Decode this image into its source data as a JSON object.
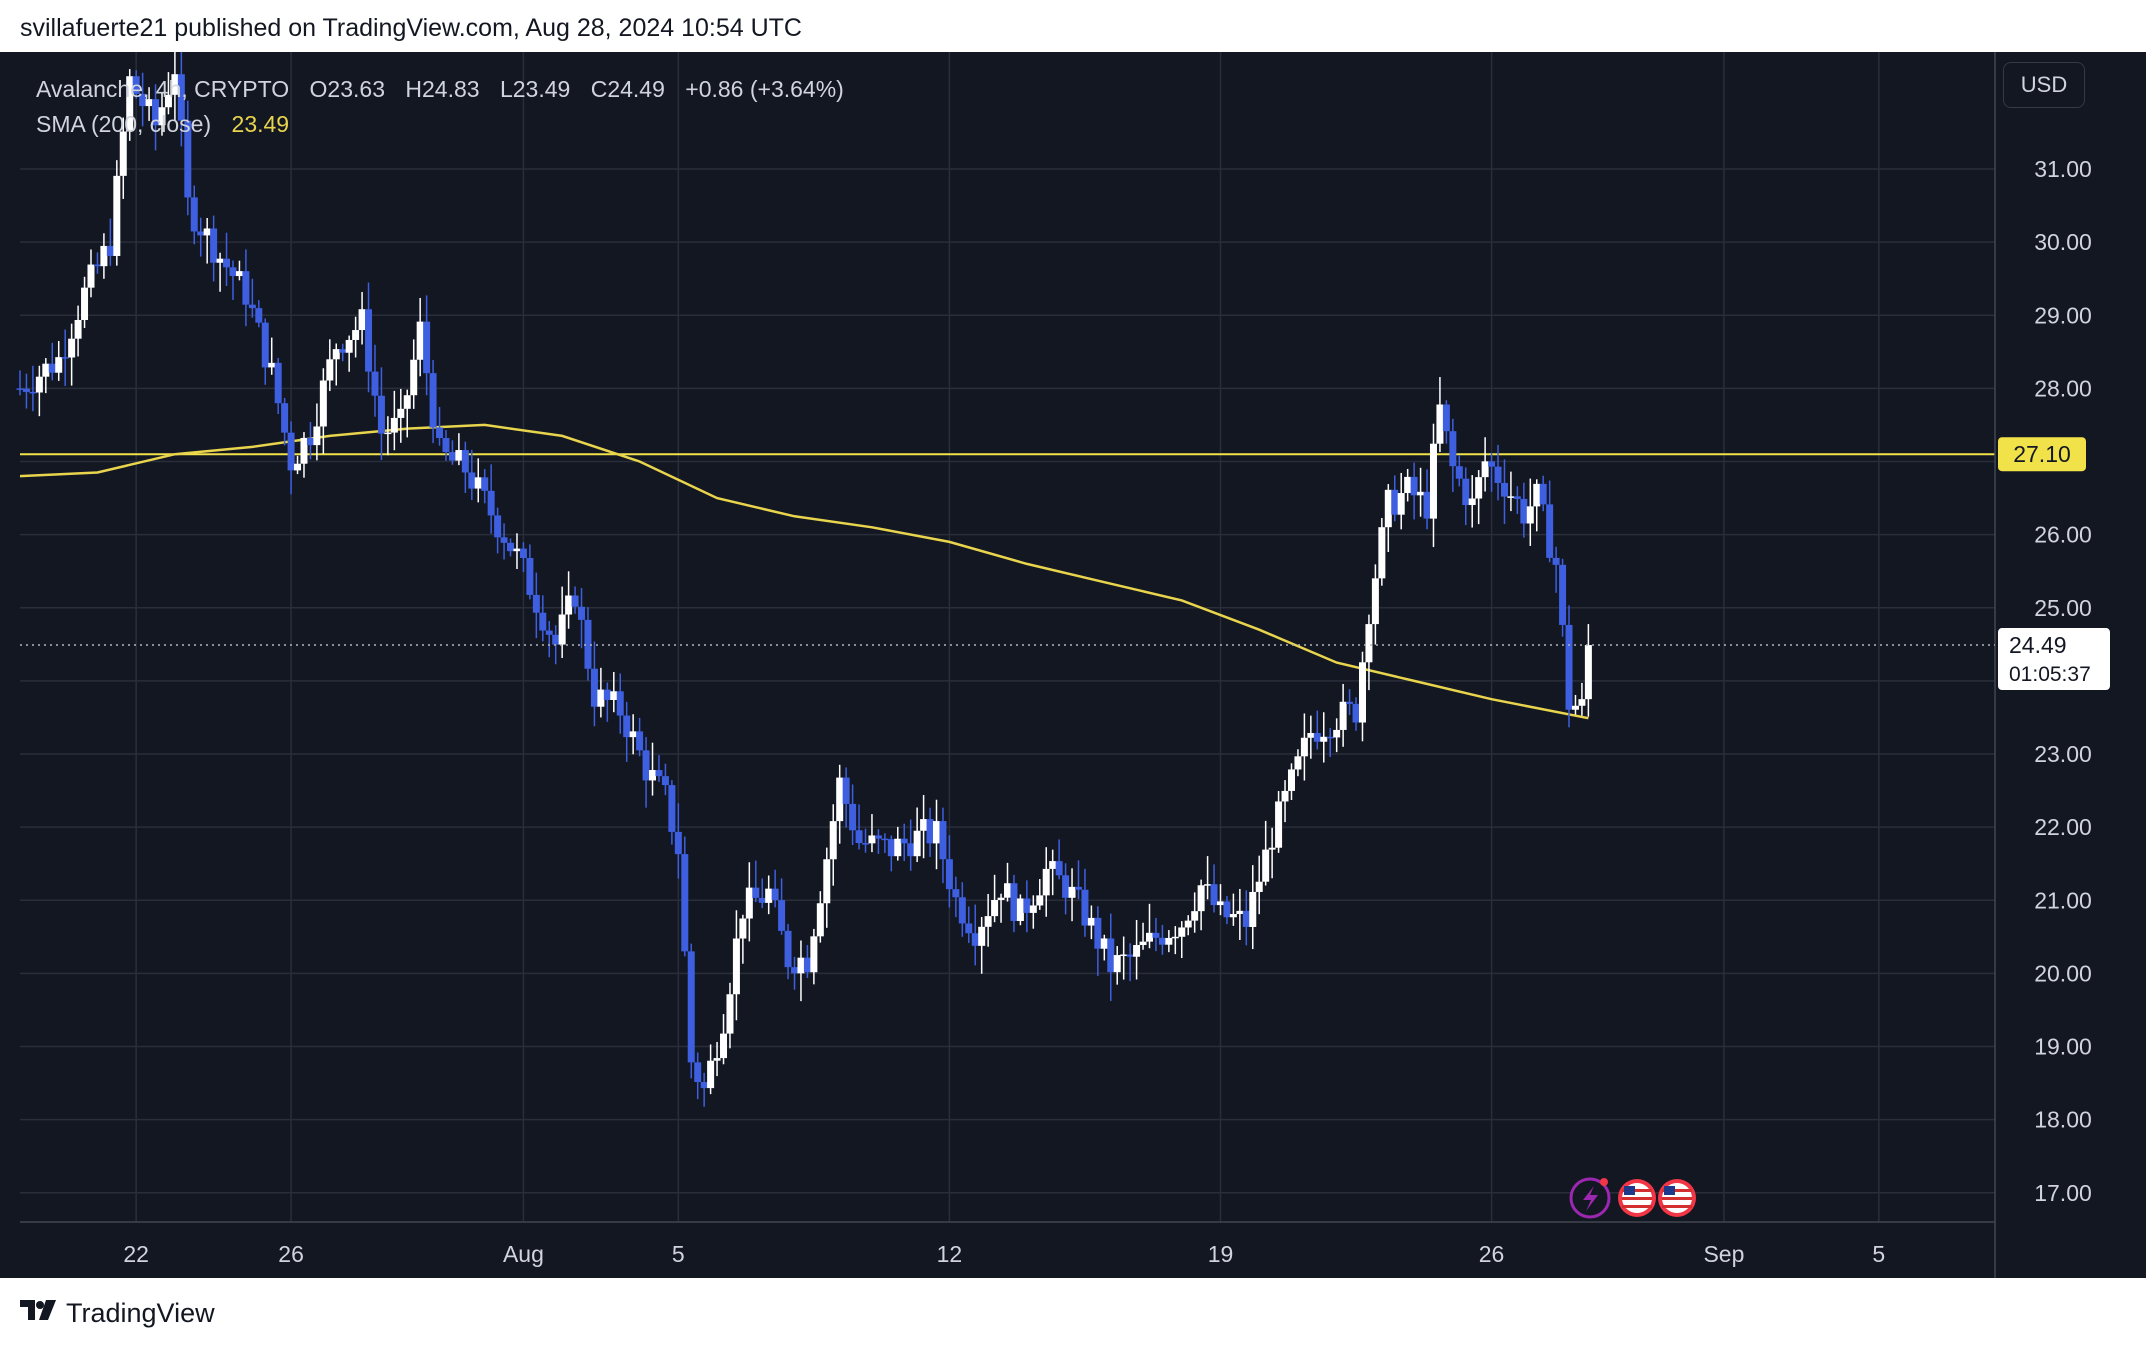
{
  "header": {
    "published_text": "svillafuerte21 published on TradingView.com, Aug 28, 2024 10:54 UTC"
  },
  "legend": {
    "symbol": "Avalanche, 4h, CRYPTO",
    "open": "O23.63",
    "high": "H24.83",
    "low": "L23.49",
    "close": "C24.49",
    "change": "+0.86 (+3.64%)",
    "sma_label": "SMA (200, close)",
    "sma_value": "23.49"
  },
  "currency_button": "USD",
  "price_axis": {
    "ticks": [
      "31.00",
      "30.00",
      "29.00",
      "28.00",
      "26.00",
      "25.00",
      "23.00",
      "22.00",
      "21.00",
      "20.00",
      "19.00",
      "18.00",
      "17.00"
    ],
    "horizontal_line_label": "27.10",
    "last_price_label": "24.49",
    "countdown_label": "01:05:37"
  },
  "time_axis": {
    "ticks": [
      "22",
      "26",
      "Aug",
      "5",
      "12",
      "19",
      "26",
      "Sep",
      "5"
    ]
  },
  "footer": {
    "brand": "TradingView"
  },
  "colors": {
    "background": "#131722",
    "grid": "#2a2e39",
    "candle_up": "#ffffff",
    "candle_down": "#3d5fe0",
    "sma_line": "#e8d44d",
    "level_line": "#f2e24a",
    "text": "#d1d4dc"
  },
  "icons": [
    "lightning-event-icon",
    "us-flag-event-icon",
    "us-flag-event-icon"
  ],
  "chart_data": {
    "type": "candlestick",
    "title": "",
    "timeframe": "4h",
    "x_range": [
      "2024-07-19",
      "2024-09-08"
    ],
    "y_range": [
      16.6,
      32.6
    ],
    "y_ticks": [
      17,
      18,
      19,
      20,
      21,
      22,
      23,
      24,
      25,
      26,
      27,
      28,
      29,
      30,
      31
    ],
    "horizontal_level": 27.1,
    "last_price": 24.49,
    "x_ticks": [
      {
        "label": "22",
        "date": "2024-07-22"
      },
      {
        "label": "26",
        "date": "2024-07-26"
      },
      {
        "label": "Aug",
        "date": "2024-08-01"
      },
      {
        "label": "5",
        "date": "2024-08-05"
      },
      {
        "label": "12",
        "date": "2024-08-12"
      },
      {
        "label": "19",
        "date": "2024-08-19"
      },
      {
        "label": "26",
        "date": "2024-08-26"
      },
      {
        "label": "Sep",
        "date": "2024-09-01"
      },
      {
        "label": "5",
        "date": "2024-09-05"
      }
    ],
    "price_anchors": [
      [
        "2024-07-19T00:00",
        28.0
      ],
      [
        "2024-07-20T00:00",
        28.4
      ],
      [
        "2024-07-20T16:00",
        29.3
      ],
      [
        "2024-07-21T08:00",
        30.0
      ],
      [
        "2024-07-21T20:00",
        32.2
      ],
      [
        "2024-07-22T12:00",
        31.6
      ],
      [
        "2024-07-23T00:00",
        32.4
      ],
      [
        "2024-07-23T08:00",
        30.5
      ],
      [
        "2024-07-24T04:00",
        29.8
      ],
      [
        "2024-07-24T20:00",
        29.3
      ],
      [
        "2024-07-25T12:00",
        28.2
      ],
      [
        "2024-07-26T00:00",
        27.0
      ],
      [
        "2024-07-26T12:00",
        27.4
      ],
      [
        "2024-07-27T04:00",
        28.6
      ],
      [
        "2024-07-27T20:00",
        28.9
      ],
      [
        "2024-07-28T08:00",
        27.4
      ],
      [
        "2024-07-28T20:00",
        27.5
      ],
      [
        "2024-07-29T08:00",
        28.8
      ],
      [
        "2024-07-29T20:00",
        27.1
      ],
      [
        "2024-07-30T12:00",
        26.9
      ],
      [
        "2024-07-31T04:00",
        26.3
      ],
      [
        "2024-07-31T20:00",
        25.7
      ],
      [
        "2024-08-01T08:00",
        25.1
      ],
      [
        "2024-08-01T20:00",
        24.5
      ],
      [
        "2024-08-02T08:00",
        25.2
      ],
      [
        "2024-08-02T20:00",
        23.8
      ],
      [
        "2024-08-03T12:00",
        23.6
      ],
      [
        "2024-08-04T04:00",
        22.8
      ],
      [
        "2024-08-04T16:00",
        22.4
      ],
      [
        "2024-08-05T00:00",
        21.7
      ],
      [
        "2024-08-05T08:00",
        18.8
      ],
      [
        "2024-08-05T16:00",
        18.4
      ],
      [
        "2024-08-06T04:00",
        19.4
      ],
      [
        "2024-08-06T16:00",
        20.9
      ],
      [
        "2024-08-07T08:00",
        21.1
      ],
      [
        "2024-08-07T20:00",
        20.2
      ],
      [
        "2024-08-08T08:00",
        20.2
      ],
      [
        "2024-08-08T20:00",
        21.6
      ],
      [
        "2024-08-09T04:00",
        22.6
      ],
      [
        "2024-08-09T16:00",
        21.8
      ],
      [
        "2024-08-10T12:00",
        21.7
      ],
      [
        "2024-08-11T08:00",
        21.9
      ],
      [
        "2024-08-11T16:00",
        21.9
      ],
      [
        "2024-08-12T04:00",
        21.0
      ],
      [
        "2024-08-12T16:00",
        20.6
      ],
      [
        "2024-08-13T08:00",
        21.2
      ],
      [
        "2024-08-13T20:00",
        20.8
      ],
      [
        "2024-08-14T12:00",
        21.4
      ],
      [
        "2024-08-15T00:00",
        21.2
      ],
      [
        "2024-08-15T12:00",
        20.8
      ],
      [
        "2024-08-16T04:00",
        20.1
      ],
      [
        "2024-08-16T16:00",
        20.2
      ],
      [
        "2024-08-17T08:00",
        20.5
      ],
      [
        "2024-08-18T00:00",
        20.7
      ],
      [
        "2024-08-18T12:00",
        21.2
      ],
      [
        "2024-08-19T00:00",
        20.8
      ],
      [
        "2024-08-19T16:00",
        20.7
      ],
      [
        "2024-08-20T08:00",
        21.9
      ],
      [
        "2024-08-20T20:00",
        22.6
      ],
      [
        "2024-08-21T08:00",
        23.3
      ],
      [
        "2024-08-22T00:00",
        23.5
      ],
      [
        "2024-08-22T12:00",
        23.6
      ],
      [
        "2024-08-22T20:00",
        25.0
      ],
      [
        "2024-08-23T08:00",
        26.4
      ],
      [
        "2024-08-23T20:00",
        26.6
      ],
      [
        "2024-08-24T08:00",
        26.4
      ],
      [
        "2024-08-24T16:00",
        27.7
      ],
      [
        "2024-08-25T00:00",
        26.9
      ],
      [
        "2024-08-25T12:00",
        26.4
      ],
      [
        "2024-08-25T20:00",
        27.0
      ],
      [
        "2024-08-26T08:00",
        26.7
      ],
      [
        "2024-08-26T20:00",
        26.3
      ],
      [
        "2024-08-27T04:00",
        26.5
      ],
      [
        "2024-08-27T16:00",
        25.6
      ],
      [
        "2024-08-28T00:00",
        23.7
      ],
      [
        "2024-08-28T08:00",
        23.63
      ],
      [
        "2024-08-28T12:00",
        24.49
      ]
    ],
    "sma_200": [
      [
        "2024-07-19T00:00",
        26.8
      ],
      [
        "2024-07-21T00:00",
        26.85
      ],
      [
        "2024-07-23T00:00",
        27.1
      ],
      [
        "2024-07-25T00:00",
        27.2
      ],
      [
        "2024-07-27T00:00",
        27.35
      ],
      [
        "2024-07-29T00:00",
        27.45
      ],
      [
        "2024-07-31T00:00",
        27.5
      ],
      [
        "2024-08-02T00:00",
        27.35
      ],
      [
        "2024-08-04T00:00",
        27.0
      ],
      [
        "2024-08-06T00:00",
        26.5
      ],
      [
        "2024-08-08T00:00",
        26.25
      ],
      [
        "2024-08-10T00:00",
        26.1
      ],
      [
        "2024-08-12T00:00",
        25.9
      ],
      [
        "2024-08-14T00:00",
        25.6
      ],
      [
        "2024-08-16T00:00",
        25.35
      ],
      [
        "2024-08-18T00:00",
        25.1
      ],
      [
        "2024-08-20T00:00",
        24.7
      ],
      [
        "2024-08-22T00:00",
        24.25
      ],
      [
        "2024-08-24T00:00",
        24.0
      ],
      [
        "2024-08-26T00:00",
        23.75
      ],
      [
        "2024-08-28T12:00",
        23.49
      ]
    ]
  }
}
